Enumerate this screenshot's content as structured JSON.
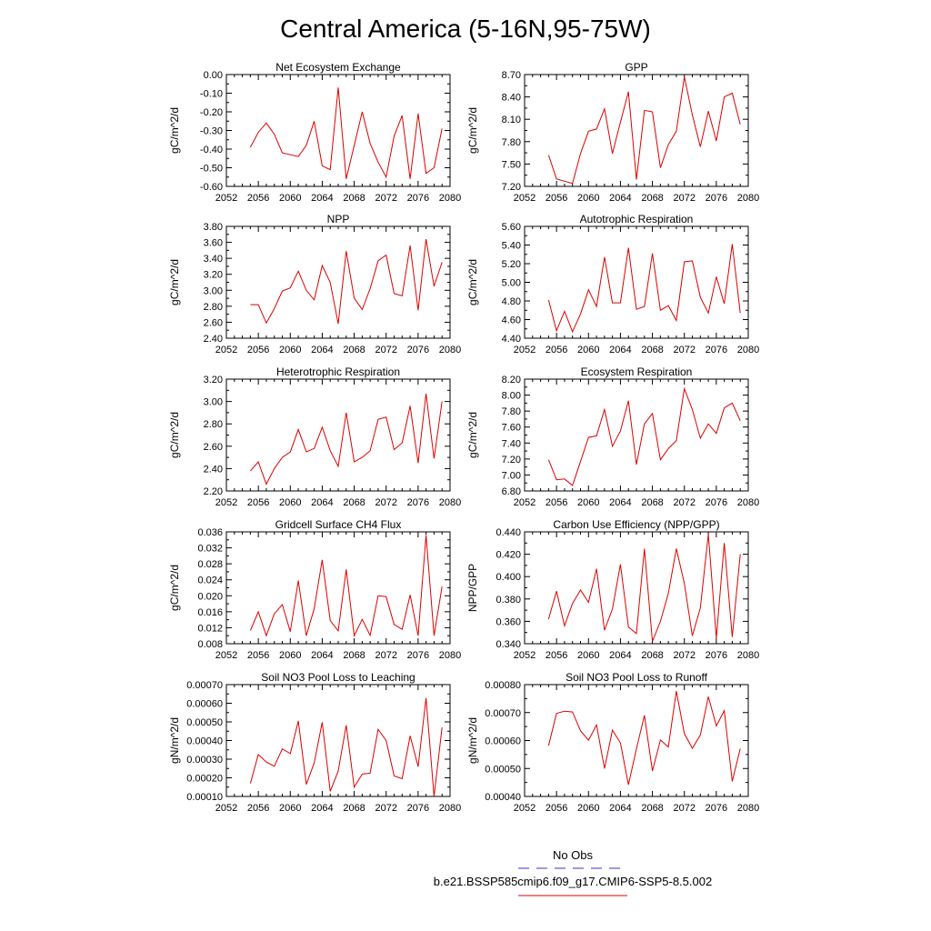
{
  "title": "Central America (5-16N,95-75W)",
  "legend": {
    "obs_label": "No Obs",
    "model_label": "b.e21.BSSP585cmip6.f09_g17.CMIP6-SSP5-8.5.002",
    "obs_color": "#3333cc",
    "model_color": "#dd0000"
  },
  "chart_data": [
    {
      "type": "line",
      "title": "Net Ecosystem Exchange",
      "ylabel": "gC/m^2/d",
      "xlim": [
        2052,
        2080
      ],
      "xticks": [
        "2052",
        "2056",
        "2060",
        "2064",
        "2068",
        "2072",
        "2076",
        "2080"
      ],
      "ylim": [
        -0.6,
        0.0
      ],
      "yticks": [
        "0.00",
        "-0.10",
        "-0.20",
        "-0.30",
        "-0.40",
        "-0.50",
        "-0.60"
      ],
      "x": [
        2055,
        2056,
        2057,
        2058,
        2059,
        2060,
        2061,
        2062,
        2063,
        2064,
        2065,
        2066,
        2067,
        2068,
        2069,
        2070,
        2071,
        2072,
        2073,
        2074,
        2075,
        2076,
        2077,
        2078,
        2079
      ],
      "series": [
        {
          "values": [
            -0.39,
            -0.31,
            -0.26,
            -0.32,
            -0.42,
            -0.43,
            -0.44,
            -0.38,
            -0.25,
            -0.49,
            -0.51,
            -0.07,
            -0.56,
            -0.38,
            -0.2,
            -0.37,
            -0.47,
            -0.55,
            -0.33,
            -0.22,
            -0.56,
            -0.21,
            -0.53,
            -0.5,
            -0.29
          ],
          "color": "#dd0000"
        }
      ]
    },
    {
      "type": "line",
      "title": "GPP",
      "ylabel": "gC/m^2/d",
      "xlim": [
        2052,
        2080
      ],
      "xticks": [
        "2052",
        "2056",
        "2060",
        "2064",
        "2068",
        "2072",
        "2076",
        "2080"
      ],
      "ylim": [
        7.2,
        8.7
      ],
      "yticks": [
        "8.70",
        "8.40",
        "8.10",
        "7.80",
        "7.50",
        "7.20"
      ],
      "x": [
        2055,
        2056,
        2057,
        2058,
        2059,
        2060,
        2061,
        2062,
        2063,
        2064,
        2065,
        2066,
        2067,
        2068,
        2069,
        2070,
        2071,
        2072,
        2073,
        2074,
        2075,
        2076,
        2077,
        2078,
        2079
      ],
      "series": [
        {
          "values": [
            7.62,
            7.3,
            7.27,
            7.24,
            7.64,
            7.94,
            7.97,
            8.24,
            7.64,
            8.06,
            8.47,
            7.29,
            8.22,
            8.2,
            7.45,
            7.76,
            7.94,
            8.67,
            8.16,
            7.73,
            8.21,
            7.81,
            8.4,
            8.45,
            8.03
          ],
          "color": "#dd0000"
        }
      ]
    },
    {
      "type": "line",
      "title": "NPP",
      "ylabel": "gC/m^2/d",
      "xlim": [
        2052,
        2080
      ],
      "xticks": [
        "2052",
        "2056",
        "2060",
        "2064",
        "2068",
        "2072",
        "2076",
        "2080"
      ],
      "ylim": [
        2.4,
        3.8
      ],
      "yticks": [
        "3.80",
        "3.60",
        "3.40",
        "3.20",
        "3.00",
        "2.80",
        "2.60",
        "2.40"
      ],
      "x": [
        2055,
        2056,
        2057,
        2058,
        2059,
        2060,
        2061,
        2062,
        2063,
        2064,
        2065,
        2066,
        2067,
        2068,
        2069,
        2070,
        2071,
        2072,
        2073,
        2074,
        2075,
        2076,
        2077,
        2078,
        2079
      ],
      "series": [
        {
          "values": [
            2.82,
            2.82,
            2.59,
            2.77,
            2.99,
            3.03,
            3.24,
            3.0,
            2.88,
            3.31,
            3.1,
            2.58,
            3.49,
            2.9,
            2.76,
            3.02,
            3.37,
            3.44,
            2.96,
            2.93,
            3.56,
            2.75,
            3.64,
            3.05,
            3.35
          ],
          "color": "#dd0000"
        }
      ]
    },
    {
      "type": "line",
      "title": "Autotrophic Respiration",
      "ylabel": "gC/m^2/d",
      "xlim": [
        2052,
        2080
      ],
      "xticks": [
        "2052",
        "2056",
        "2060",
        "2064",
        "2068",
        "2072",
        "2076",
        "2080"
      ],
      "ylim": [
        4.4,
        5.6
      ],
      "yticks": [
        "5.60",
        "5.40",
        "5.20",
        "5.00",
        "4.80",
        "4.60",
        "4.40"
      ],
      "x": [
        2055,
        2056,
        2057,
        2058,
        2059,
        2060,
        2061,
        2062,
        2063,
        2064,
        2065,
        2066,
        2067,
        2068,
        2069,
        2070,
        2071,
        2072,
        2073,
        2074,
        2075,
        2076,
        2077,
        2078,
        2079
      ],
      "series": [
        {
          "values": [
            4.81,
            4.48,
            4.69,
            4.47,
            4.66,
            4.92,
            4.74,
            5.27,
            4.78,
            4.78,
            5.37,
            4.71,
            4.74,
            5.31,
            4.7,
            4.75,
            4.59,
            5.22,
            5.23,
            4.84,
            4.67,
            5.06,
            4.77,
            5.41,
            4.67
          ],
          "color": "#dd0000"
        }
      ]
    },
    {
      "type": "line",
      "title": "Heterotrophic Respiration",
      "ylabel": "gC/m^2/d",
      "xlim": [
        2052,
        2080
      ],
      "xticks": [
        "2052",
        "2056",
        "2060",
        "2064",
        "2068",
        "2072",
        "2076",
        "2080"
      ],
      "ylim": [
        2.2,
        3.2
      ],
      "yticks": [
        "3.20",
        "3.00",
        "2.80",
        "2.60",
        "2.40",
        "2.20"
      ],
      "x": [
        2055,
        2056,
        2057,
        2058,
        2059,
        2060,
        2061,
        2062,
        2063,
        2064,
        2065,
        2066,
        2067,
        2068,
        2069,
        2070,
        2071,
        2072,
        2073,
        2074,
        2075,
        2076,
        2077,
        2078,
        2079
      ],
      "series": [
        {
          "values": [
            2.38,
            2.46,
            2.26,
            2.4,
            2.5,
            2.55,
            2.75,
            2.55,
            2.58,
            2.77,
            2.56,
            2.42,
            2.9,
            2.46,
            2.5,
            2.56,
            2.84,
            2.86,
            2.57,
            2.63,
            2.96,
            2.45,
            3.07,
            2.49,
            3.0
          ],
          "color": "#dd0000"
        }
      ]
    },
    {
      "type": "line",
      "title": "Ecosystem Respiration",
      "ylabel": "gC/m^2/d",
      "xlim": [
        2052,
        2080
      ],
      "xticks": [
        "2052",
        "2056",
        "2060",
        "2064",
        "2068",
        "2072",
        "2076",
        "2080"
      ],
      "ylim": [
        6.8,
        8.2
      ],
      "yticks": [
        "8.20",
        "8.00",
        "7.80",
        "7.60",
        "7.40",
        "7.20",
        "7.00",
        "6.80"
      ],
      "x": [
        2055,
        2056,
        2057,
        2058,
        2059,
        2060,
        2061,
        2062,
        2063,
        2064,
        2065,
        2066,
        2067,
        2068,
        2069,
        2070,
        2071,
        2072,
        2073,
        2074,
        2075,
        2076,
        2077,
        2078,
        2079
      ],
      "series": [
        {
          "values": [
            7.19,
            6.94,
            6.95,
            6.87,
            7.17,
            7.47,
            7.49,
            7.82,
            7.36,
            7.55,
            7.93,
            7.13,
            7.64,
            7.77,
            7.19,
            7.33,
            7.43,
            8.08,
            7.82,
            7.46,
            7.64,
            7.52,
            7.84,
            7.9,
            7.68
          ],
          "color": "#dd0000"
        }
      ]
    },
    {
      "type": "line",
      "title": "Gridcell Surface CH4 Flux",
      "ylabel": "gC/m^2/d",
      "xlim": [
        2052,
        2080
      ],
      "xticks": [
        "2052",
        "2056",
        "2060",
        "2064",
        "2068",
        "2072",
        "2076",
        "2080"
      ],
      "ylim": [
        0.008,
        0.036
      ],
      "yticks": [
        "0.036",
        "0.032",
        "0.028",
        "0.024",
        "0.020",
        "0.016",
        "0.012",
        "0.008"
      ],
      "x": [
        2055,
        2056,
        2057,
        2058,
        2059,
        2060,
        2061,
        2062,
        2063,
        2064,
        2065,
        2066,
        2067,
        2068,
        2069,
        2070,
        2071,
        2072,
        2073,
        2074,
        2075,
        2076,
        2077,
        2078,
        2079
      ],
      "series": [
        {
          "values": [
            0.0113,
            0.016,
            0.01,
            0.0155,
            0.0178,
            0.011,
            0.0238,
            0.01,
            0.0168,
            0.029,
            0.0138,
            0.0112,
            0.0266,
            0.01,
            0.0141,
            0.0101,
            0.02,
            0.0198,
            0.0128,
            0.0116,
            0.0202,
            0.01,
            0.0352,
            0.01,
            0.0223
          ],
          "color": "#dd0000"
        }
      ]
    },
    {
      "type": "line",
      "title": "Carbon Use Efficiency (NPP/GPP)",
      "ylabel": "NPP/GPP",
      "xlim": [
        2052,
        2080
      ],
      "xticks": [
        "2052",
        "2056",
        "2060",
        "2064",
        "2068",
        "2072",
        "2076",
        "2080"
      ],
      "ylim": [
        0.34,
        0.44
      ],
      "yticks": [
        "0.440",
        "0.420",
        "0.400",
        "0.380",
        "0.360",
        "0.340"
      ],
      "x": [
        2055,
        2056,
        2057,
        2058,
        2059,
        2060,
        2061,
        2062,
        2063,
        2064,
        2065,
        2066,
        2067,
        2068,
        2069,
        2070,
        2071,
        2072,
        2073,
        2074,
        2075,
        2076,
        2077,
        2078,
        2079
      ],
      "series": [
        {
          "values": [
            0.362,
            0.387,
            0.356,
            0.376,
            0.388,
            0.377,
            0.407,
            0.352,
            0.371,
            0.411,
            0.355,
            0.349,
            0.425,
            0.342,
            0.36,
            0.385,
            0.425,
            0.394,
            0.347,
            0.372,
            0.438,
            0.345,
            0.43,
            0.346,
            0.42
          ],
          "color": "#dd0000"
        }
      ]
    },
    {
      "type": "line",
      "title": "Soil NO3 Pool Loss to Leaching",
      "ylabel": "gN/m^2/d",
      "xlim": [
        2052,
        2080
      ],
      "xticks": [
        "2052",
        "2056",
        "2060",
        "2064",
        "2068",
        "2072",
        "2076",
        "2080"
      ],
      "ylim": [
        0.0001,
        0.0007
      ],
      "yticks": [
        "0.00070",
        "0.00060",
        "0.00050",
        "0.00040",
        "0.00030",
        "0.00020",
        "0.00010"
      ],
      "x": [
        2055,
        2056,
        2057,
        2058,
        2059,
        2060,
        2061,
        2062,
        2063,
        2064,
        2065,
        2066,
        2067,
        2068,
        2069,
        2070,
        2071,
        2072,
        2073,
        2074,
        2075,
        2076,
        2077,
        2078,
        2079
      ],
      "series": [
        {
          "values": [
            0.00017,
            0.000325,
            0.000285,
            0.000262,
            0.000355,
            0.00033,
            0.000505,
            0.000165,
            0.00028,
            0.000498,
            0.000128,
            0.000236,
            0.000482,
            0.00015,
            0.00022,
            0.000225,
            0.00046,
            0.0004,
            0.00021,
            0.000195,
            0.000425,
            0.00026,
            0.000628,
            0.0001,
            0.00047
          ],
          "color": "#dd0000"
        }
      ]
    },
    {
      "type": "line",
      "title": "Soil NO3 Pool Loss to Runoff",
      "ylabel": "gN/m^2/d",
      "xlim": [
        2052,
        2080
      ],
      "xticks": [
        "2052",
        "2056",
        "2060",
        "2064",
        "2068",
        "2072",
        "2076",
        "2080"
      ],
      "ylim": [
        0.0004,
        0.0008
      ],
      "yticks": [
        "0.00080",
        "0.00070",
        "0.00060",
        "0.00050",
        "0.00040"
      ],
      "x": [
        2055,
        2056,
        2057,
        2058,
        2059,
        2060,
        2061,
        2062,
        2063,
        2064,
        2065,
        2066,
        2067,
        2068,
        2069,
        2070,
        2071,
        2072,
        2073,
        2074,
        2075,
        2076,
        2077,
        2078,
        2079
      ],
      "series": [
        {
          "values": [
            0.000582,
            0.000697,
            0.000705,
            0.000702,
            0.000635,
            0.000601,
            0.000656,
            0.0005,
            0.000637,
            0.000592,
            0.000442,
            0.00057,
            0.00069,
            0.000491,
            0.000602,
            0.000577,
            0.000777,
            0.000625,
            0.000572,
            0.00062,
            0.000757,
            0.000652,
            0.000707,
            0.000454,
            0.000571
          ],
          "color": "#dd0000"
        }
      ]
    }
  ]
}
